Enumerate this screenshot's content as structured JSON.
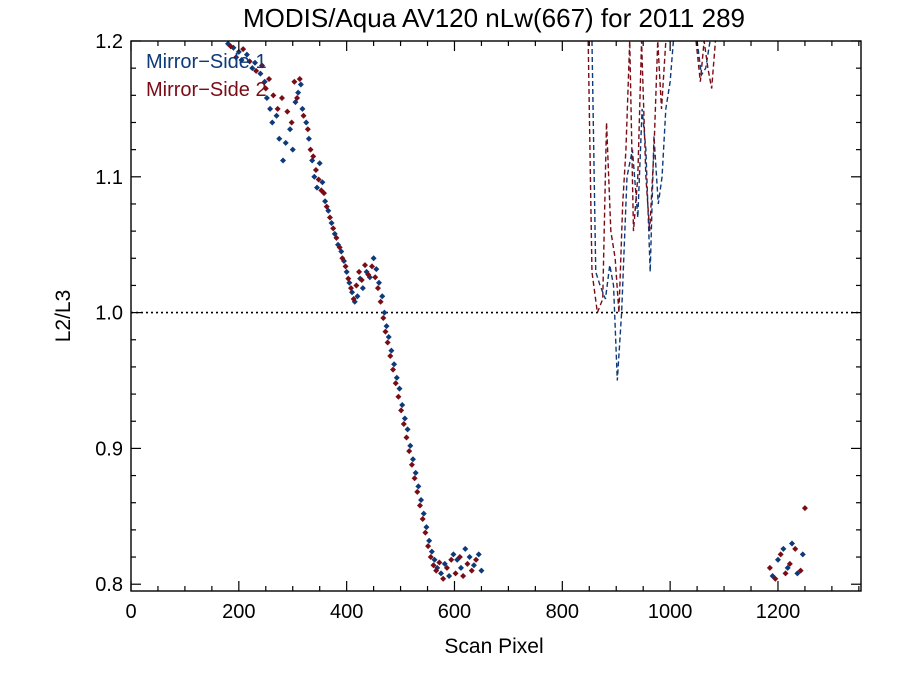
{
  "chart_data": {
    "type": "scatter",
    "title": "MODIS/Aqua AV120 nLw(667) for 2011 289",
    "xlabel": "Scan Pixel",
    "ylabel": "L2/L3",
    "xlim": [
      0,
      1354
    ],
    "ylim": [
      0.795,
      1.2
    ],
    "x_ticks": [
      "0",
      "200",
      "400",
      "600",
      "800",
      "1000",
      "1200"
    ],
    "y_ticks": [
      "0.8",
      "0.9",
      "1.0",
      "1.1",
      "1.2"
    ],
    "reference_line": {
      "y": 1.0,
      "style": "dotted"
    },
    "legend_position": "top-left",
    "series": [
      {
        "name": "Mirror−Side 1",
        "color": "#0d3a78",
        "marker": "diamond",
        "points": [
          [
            180,
            1.198
          ],
          [
            190,
            1.195
          ],
          [
            200,
            1.192
          ],
          [
            205,
            1.186
          ],
          [
            215,
            1.19
          ],
          [
            225,
            1.18
          ],
          [
            230,
            1.184
          ],
          [
            240,
            1.176
          ],
          [
            248,
            1.17
          ],
          [
            252,
            1.158
          ],
          [
            258,
            1.15
          ],
          [
            262,
            1.14
          ],
          [
            270,
            1.145
          ],
          [
            275,
            1.128
          ],
          [
            282,
            1.112
          ],
          [
            287,
            1.125
          ],
          [
            295,
            1.135
          ],
          [
            300,
            1.12
          ],
          [
            305,
            1.155
          ],
          [
            310,
            1.162
          ],
          [
            315,
            1.168
          ],
          [
            318,
            1.15
          ],
          [
            325,
            1.14
          ],
          [
            330,
            1.128
          ],
          [
            336,
            1.112
          ],
          [
            340,
            1.1
          ],
          [
            345,
            1.092
          ],
          [
            350,
            1.11
          ],
          [
            355,
            1.096
          ],
          [
            360,
            1.082
          ],
          [
            366,
            1.075
          ],
          [
            372,
            1.066
          ],
          [
            378,
            1.058
          ],
          [
            384,
            1.05
          ],
          [
            390,
            1.045
          ],
          [
            395,
            1.038
          ],
          [
            400,
            1.03
          ],
          [
            405,
            1.022
          ],
          [
            410,
            1.015
          ],
          [
            415,
            1.008
          ],
          [
            420,
            1.012
          ],
          [
            425,
            1.025
          ],
          [
            430,
            1.018
          ],
          [
            437,
            1.03
          ],
          [
            443,
            1.026
          ],
          [
            450,
            1.04
          ],
          [
            455,
            1.032
          ],
          [
            460,
            1.022
          ],
          [
            466,
            1.012
          ],
          [
            470,
            1.0
          ],
          [
            474,
            0.99
          ],
          [
            478,
            0.982
          ],
          [
            483,
            0.972
          ],
          [
            488,
            0.962
          ],
          [
            493,
            0.952
          ],
          [
            498,
            0.944
          ],
          [
            503,
            0.932
          ],
          [
            508,
            0.922
          ],
          [
            513,
            0.914
          ],
          [
            518,
            0.902
          ],
          [
            523,
            0.892
          ],
          [
            528,
            0.882
          ],
          [
            533,
            0.872
          ],
          [
            538,
            0.862
          ],
          [
            543,
            0.852
          ],
          [
            548,
            0.842
          ],
          [
            553,
            0.832
          ],
          [
            558,
            0.824
          ],
          [
            563,
            0.818
          ],
          [
            568,
            0.812
          ],
          [
            575,
            0.808
          ],
          [
            582,
            0.815
          ],
          [
            590,
            0.806
          ],
          [
            598,
            0.822
          ],
          [
            605,
            0.818
          ],
          [
            612,
            0.812
          ],
          [
            620,
            0.826
          ],
          [
            628,
            0.82
          ],
          [
            636,
            0.814
          ],
          [
            645,
            0.822
          ],
          [
            650,
            0.81
          ],
          [
            1190,
            0.806
          ],
          [
            1200,
            0.818
          ],
          [
            1210,
            0.826
          ],
          [
            1218,
            0.812
          ],
          [
            1226,
            0.83
          ],
          [
            1236,
            0.808
          ],
          [
            1246,
            0.822
          ]
        ],
        "dashed_segments": [
          [
            [
              855,
              1.2
            ],
            [
              862,
              1.03
            ],
            [
              870,
              1.02
            ],
            [
              880,
              1.01
            ],
            [
              888,
              1.035
            ],
            [
              895,
              1.02
            ],
            [
              902,
              0.95
            ],
            [
              910,
              1.0
            ],
            [
              920,
              1.1
            ],
            [
              930,
              1.12
            ],
            [
              940,
              1.07
            ],
            [
              948,
              1.15
            ],
            [
              955,
              1.12
            ],
            [
              963,
              1.03
            ],
            [
              970,
              1.13
            ],
            [
              978,
              1.08
            ],
            [
              985,
              1.1
            ],
            [
              992,
              1.15
            ],
            [
              1000,
              1.17
            ],
            [
              1006,
              1.2
            ]
          ],
          [
            [
              1050,
              1.2
            ],
            [
              1058,
              1.175
            ],
            [
              1066,
              1.18
            ],
            [
              1074,
              1.2
            ]
          ]
        ]
      },
      {
        "name": "Mirror−Side 2",
        "color": "#7a0c16",
        "marker": "diamond",
        "points": [
          [
            185,
            1.196
          ],
          [
            195,
            1.188
          ],
          [
            208,
            1.194
          ],
          [
            220,
            1.185
          ],
          [
            232,
            1.178
          ],
          [
            243,
            1.182
          ],
          [
            250,
            1.165
          ],
          [
            256,
            1.172
          ],
          [
            264,
            1.16
          ],
          [
            272,
            1.15
          ],
          [
            280,
            1.158
          ],
          [
            290,
            1.148
          ],
          [
            298,
            1.14
          ],
          [
            303,
            1.17
          ],
          [
            308,
            1.158
          ],
          [
            313,
            1.172
          ],
          [
            320,
            1.145
          ],
          [
            328,
            1.135
          ],
          [
            333,
            1.12
          ],
          [
            338,
            1.115
          ],
          [
            343,
            1.105
          ],
          [
            348,
            1.098
          ],
          [
            353,
            1.09
          ],
          [
            358,
            1.088
          ],
          [
            363,
            1.078
          ],
          [
            369,
            1.07
          ],
          [
            375,
            1.062
          ],
          [
            381,
            1.055
          ],
          [
            387,
            1.048
          ],
          [
            392,
            1.04
          ],
          [
            398,
            1.034
          ],
          [
            403,
            1.025
          ],
          [
            408,
            1.018
          ],
          [
            413,
            1.01
          ],
          [
            418,
            1.02
          ],
          [
            423,
            1.03
          ],
          [
            428,
            1.024
          ],
          [
            434,
            1.035
          ],
          [
            440,
            1.028
          ],
          [
            447,
            1.034
          ],
          [
            453,
            1.026
          ],
          [
            458,
            1.018
          ],
          [
            463,
            1.008
          ],
          [
            468,
            0.996
          ],
          [
            472,
            0.986
          ],
          [
            476,
            0.978
          ],
          [
            481,
            0.968
          ],
          [
            486,
            0.958
          ],
          [
            491,
            0.948
          ],
          [
            496,
            0.938
          ],
          [
            501,
            0.928
          ],
          [
            506,
            0.918
          ],
          [
            511,
            0.908
          ],
          [
            516,
            0.898
          ],
          [
            521,
            0.888
          ],
          [
            526,
            0.878
          ],
          [
            531,
            0.868
          ],
          [
            536,
            0.858
          ],
          [
            541,
            0.848
          ],
          [
            546,
            0.838
          ],
          [
            551,
            0.828
          ],
          [
            556,
            0.82
          ],
          [
            561,
            0.814
          ],
          [
            566,
            0.81
          ],
          [
            572,
            0.816
          ],
          [
            579,
            0.804
          ],
          [
            586,
            0.812
          ],
          [
            594,
            0.818
          ],
          [
            602,
            0.808
          ],
          [
            610,
            0.82
          ],
          [
            616,
            0.806
          ],
          [
            624,
            0.815
          ],
          [
            632,
            0.81
          ],
          [
            640,
            0.818
          ],
          [
            1185,
            0.812
          ],
          [
            1195,
            0.804
          ],
          [
            1205,
            0.822
          ],
          [
            1214,
            0.808
          ],
          [
            1222,
            0.815
          ],
          [
            1232,
            0.826
          ],
          [
            1242,
            0.81
          ],
          [
            1250,
            0.856
          ]
        ],
        "dashed_segments": [
          [
            [
              848,
              1.2
            ],
            [
              855,
              1.03
            ],
            [
              865,
              1.0
            ],
            [
              875,
              1.01
            ],
            [
              882,
              1.14
            ],
            [
              890,
              1.06
            ],
            [
              898,
              1.04
            ],
            [
              905,
              1.0
            ],
            [
              912,
              1.08
            ],
            [
              918,
              1.12
            ],
            [
              925,
              1.2
            ],
            [
              932,
              1.06
            ],
            [
              940,
              1.1
            ],
            [
              947,
              1.2
            ],
            [
              955,
              1.1
            ],
            [
              962,
              1.06
            ],
            [
              970,
              1.12
            ],
            [
              977,
              1.2
            ],
            [
              984,
              1.15
            ],
            [
              992,
              1.2
            ]
          ],
          [
            [
              1048,
              1.2
            ],
            [
              1056,
              1.17
            ],
            [
              1063,
              1.2
            ],
            [
              1070,
              1.18
            ],
            [
              1077,
              1.165
            ],
            [
              1084,
              1.2
            ]
          ]
        ]
      }
    ]
  }
}
